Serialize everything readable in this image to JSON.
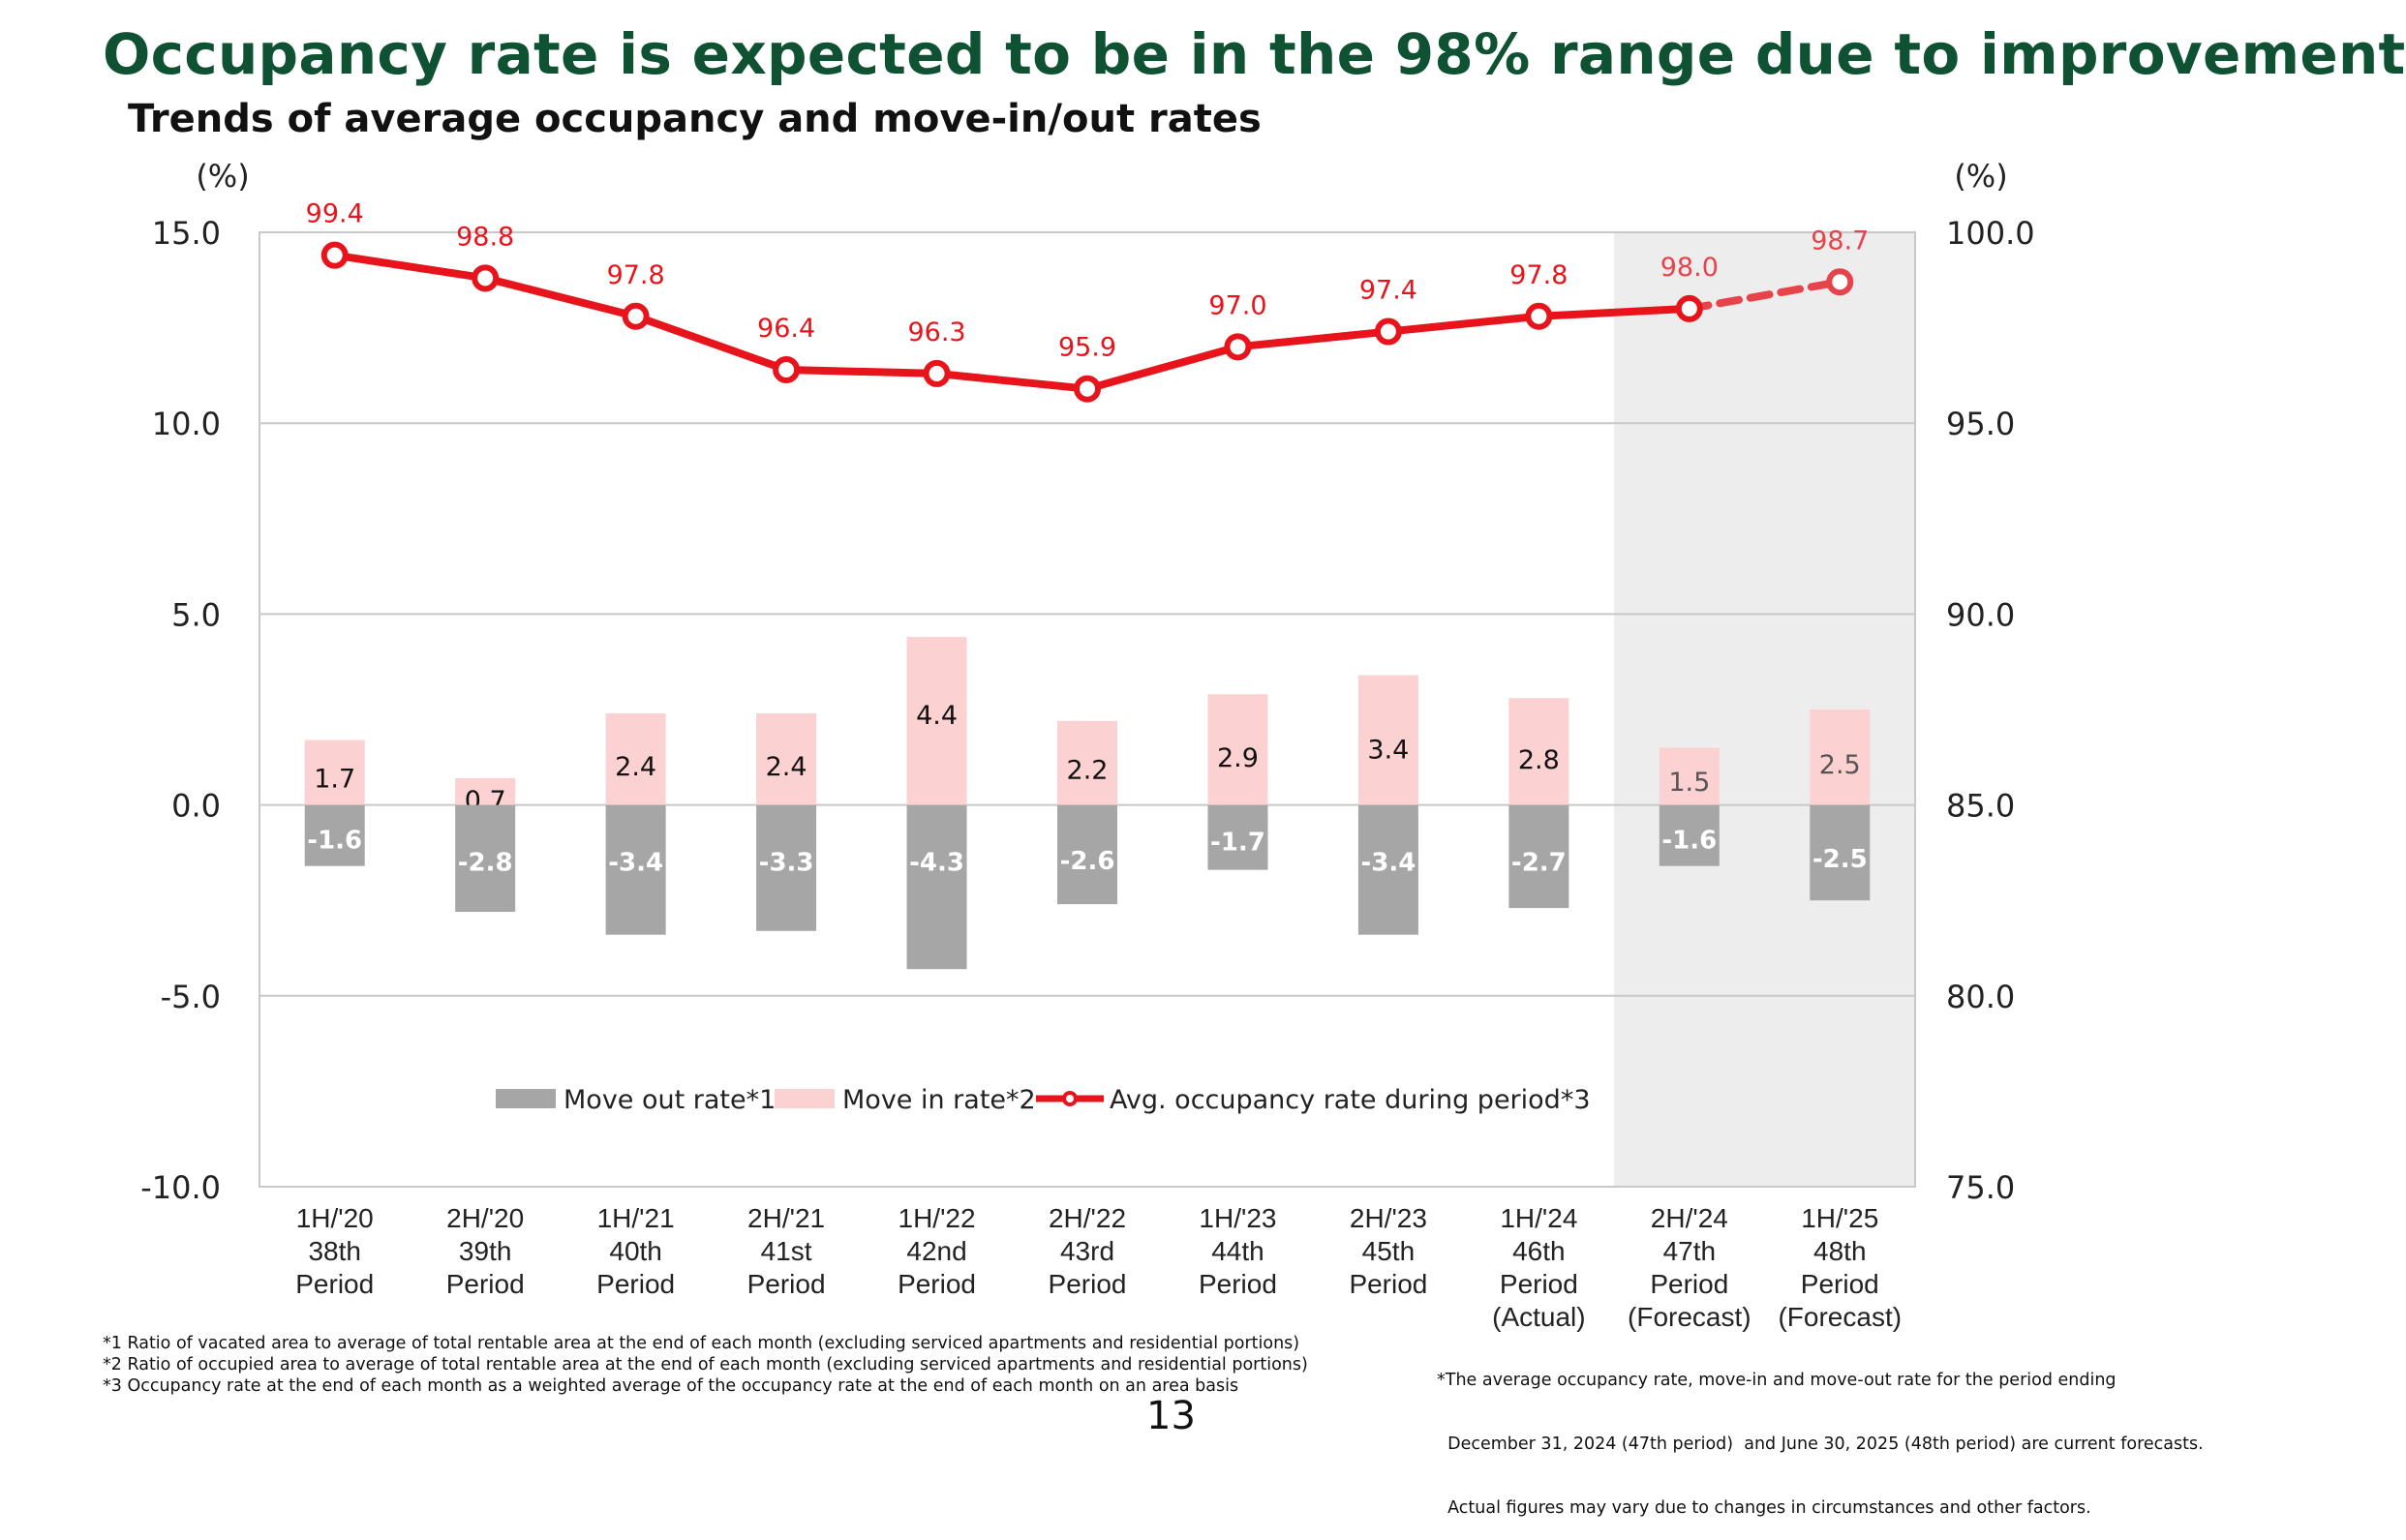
{
  "header": {
    "title": "Occupancy rate is expected to be in the 98% range due to improvement",
    "subtitle": "Trends of average occupancy and move-in/out rates"
  },
  "chart_data": {
    "type": "bar",
    "left_unit": "(%)",
    "right_unit": "(%)",
    "left_axis": {
      "ylim": [
        -10,
        15
      ],
      "ticks": [
        "15.0",
        "10.0",
        "5.0",
        "0.0",
        "-5.0",
        "-10.0"
      ],
      "tick_values": [
        15,
        10,
        5,
        0,
        -5,
        -10
      ]
    },
    "right_axis": {
      "ylim": [
        75,
        100
      ],
      "ticks": [
        "100.0",
        "95.0",
        "90.0",
        "85.0",
        "80.0",
        "75.0"
      ],
      "tick_values": [
        100,
        95,
        90,
        85,
        80,
        75
      ]
    },
    "categories": [
      [
        "1H/'20",
        "38th",
        "Period"
      ],
      [
        "2H/'20",
        "39th",
        "Period"
      ],
      [
        "1H/'21",
        "40th",
        "Period"
      ],
      [
        "2H/'21",
        "41st",
        "Period"
      ],
      [
        "1H/'22",
        "42nd",
        "Period"
      ],
      [
        "2H/'22",
        "43rd",
        "Period"
      ],
      [
        "1H/'23",
        "44th",
        "Period"
      ],
      [
        "2H/'23",
        "45th",
        "Period"
      ],
      [
        "1H/'24",
        "46th",
        "Period",
        "(Actual)"
      ],
      [
        "2H/'24",
        "47th",
        "Period",
        "(Forecast)"
      ],
      [
        "1H/'25",
        "48th",
        "Period",
        "(Forecast)"
      ]
    ],
    "forecast_start_index": 9,
    "series": [
      {
        "name": "Move out rate*1",
        "kind": "bar",
        "axis": "left",
        "color": "#a6a6a6",
        "values": [
          -1.6,
          -2.8,
          -3.4,
          -3.3,
          -4.3,
          -2.6,
          -1.7,
          -3.4,
          -2.7,
          -1.6,
          -2.5
        ],
        "labels": [
          "-1.6",
          "-2.8",
          "-3.4",
          "-3.3",
          "-4.3",
          "-2.6",
          "-1.7",
          "-3.4",
          "-2.7",
          "-1.6",
          "-2.5"
        ]
      },
      {
        "name": "Move in rate*2",
        "kind": "bar",
        "axis": "left",
        "color": "#fcd1d1",
        "values": [
          1.7,
          0.7,
          2.4,
          2.4,
          4.4,
          2.2,
          2.9,
          3.4,
          2.8,
          1.5,
          2.5
        ],
        "labels": [
          "1.7",
          "0.7",
          "2.4",
          "2.4",
          "4.4",
          "2.2",
          "2.9",
          "3.4",
          "2.8",
          "1.5",
          "2.5"
        ]
      },
      {
        "name": "Avg. occupancy rate during period*3",
        "kind": "line",
        "axis": "right",
        "color": "#e8141b",
        "values": [
          99.4,
          98.8,
          97.8,
          96.4,
          96.3,
          95.9,
          97.0,
          97.4,
          97.8,
          98.0,
          98.7
        ],
        "labels": [
          "99.4",
          "98.8",
          "97.8",
          "96.4",
          "96.3",
          "95.9",
          "97.0",
          "97.4",
          "97.8",
          "98.0",
          "98.7"
        ]
      }
    ],
    "legend_position": "bottom-center-inside",
    "grid": true
  },
  "notes": {
    "left": [
      "*1 Ratio of vacated area to average of total rentable area at the end of each month (excluding serviced apartments and residential portions)",
      "*2 Ratio of occupied area to average of total rentable area at the end of each month (excluding serviced apartments and residential portions)",
      "*3 Occupancy rate at the end of each month as a weighted average of the occupancy rate at the end of each month on an area basis"
    ],
    "right": [
      "*The average occupancy rate, move-in and move-out rate for the period ending",
      "  December 31, 2024 (47th period)  and June 30, 2025 (48th period) are current forecasts.",
      "  Actual figures may vary due to changes in circumstances and other factors."
    ]
  },
  "page_number": "13"
}
